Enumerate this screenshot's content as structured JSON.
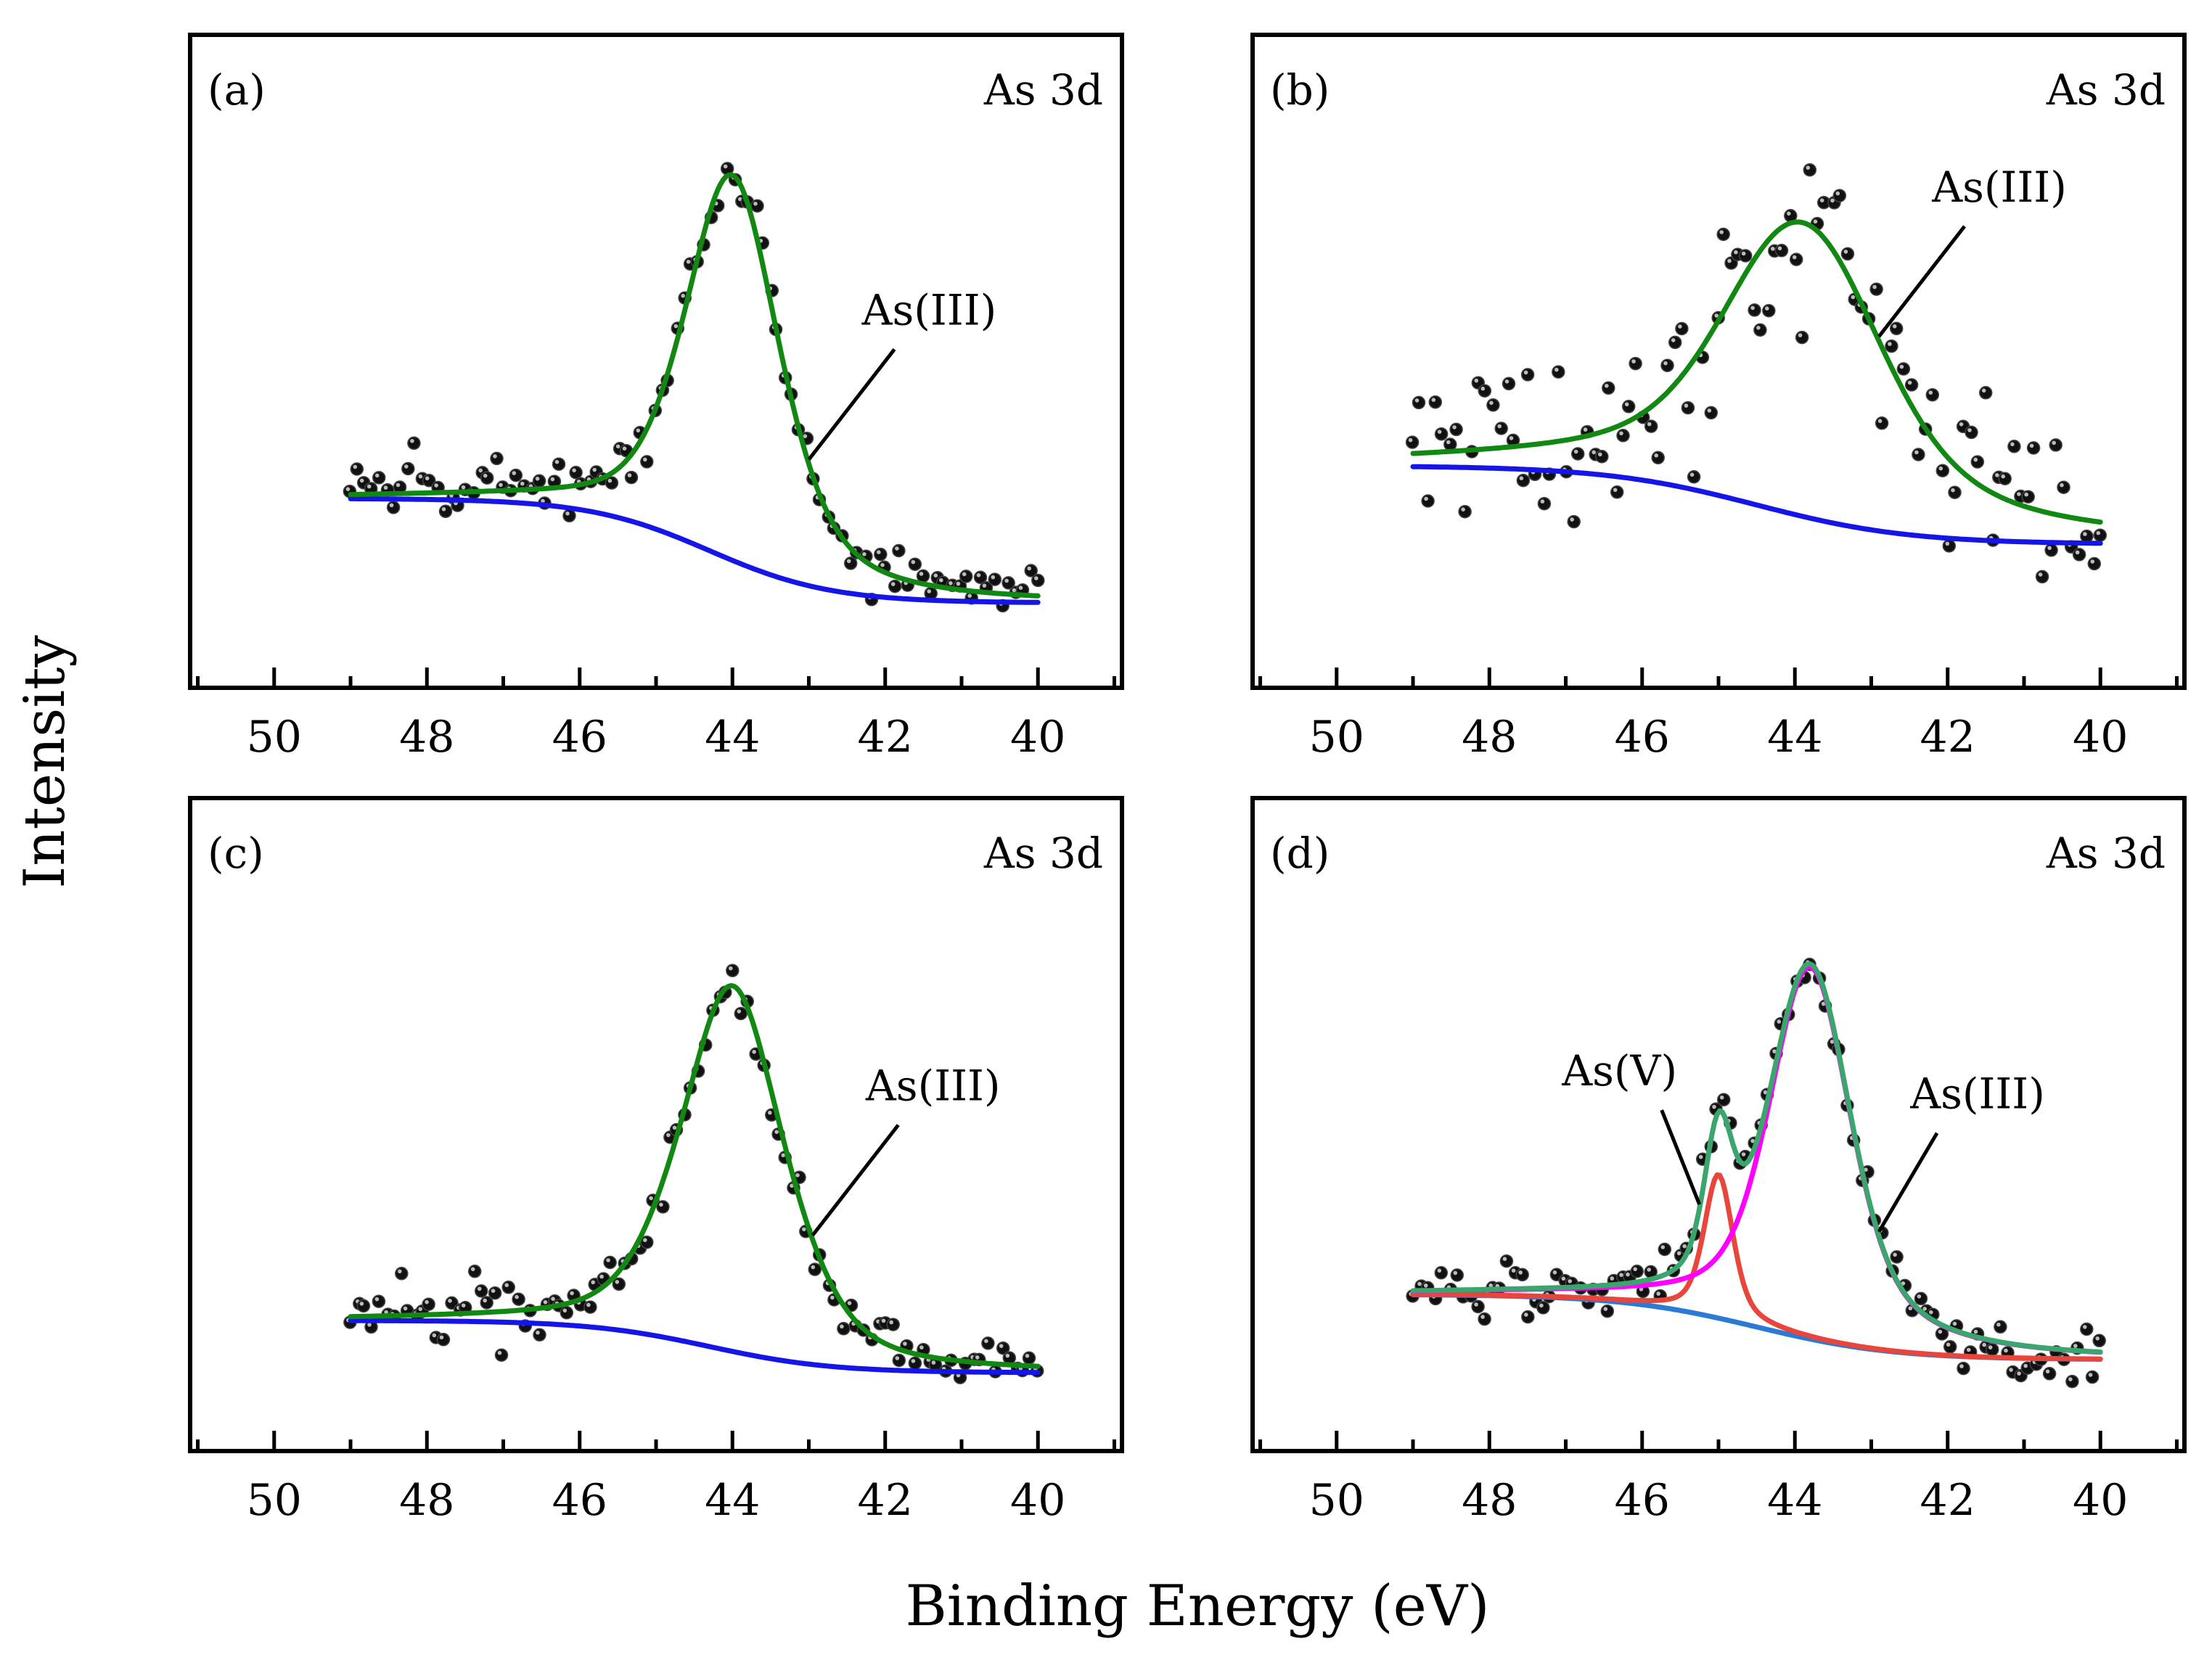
{
  "figure": {
    "xlabel": "Binding Energy (eV)",
    "ylabel": "Intensity"
  },
  "chart_data": [
    {
      "type": "scatter",
      "panel": "(a)",
      "title": "As 3d",
      "xlabel": "Binding Energy (eV)",
      "ylabel": "Intensity",
      "xlim": [
        51.1,
        38.9
      ],
      "ylim": [
        0,
        1
      ],
      "x_reversed": true,
      "xticks": [
        50,
        48,
        46,
        44,
        42,
        40
      ],
      "yticks": [],
      "grid": false,
      "annotations": [
        {
          "text": "As(III)",
          "peak_x": 43.0
        }
      ],
      "data_points": {
        "x_range": [
          49.0,
          40.0
        ],
        "count": 96,
        "peak_center": 44.0,
        "peak_height": 0.86,
        "noise": 0.025
      },
      "series": [
        {
          "name": "Fit",
          "role": "envelope",
          "color": "#118811",
          "components": [
            {
              "center": 44.0,
              "amplitude": 0.59,
              "sigma": 0.62,
              "gamma": 0.75
            }
          ],
          "background": {
            "high": 0.29,
            "low": 0.13,
            "center": 44.3,
            "width": 0.8
          }
        },
        {
          "name": "Background",
          "role": "background",
          "color": "#1515e8",
          "high": 0.29,
          "low": 0.13,
          "center": 44.3,
          "width": 0.8
        }
      ]
    },
    {
      "type": "scatter",
      "panel": "(b)",
      "title": "As 3d",
      "xlabel": "Binding Energy (eV)",
      "ylabel": "Intensity",
      "xlim": [
        51.1,
        38.9
      ],
      "ylim": [
        0,
        1
      ],
      "x_reversed": true,
      "xticks": [
        50,
        48,
        46,
        44,
        42,
        40
      ],
      "yticks": [],
      "grid": false,
      "annotations": [
        {
          "text": "As(III)",
          "peak_x": 42.9
        }
      ],
      "data_points": {
        "x_range": [
          49.0,
          40.0
        ],
        "count": 96,
        "peak_center": 43.9,
        "peak_height": 0.81,
        "noise": 0.065
      },
      "series": [
        {
          "name": "Fit",
          "role": "envelope",
          "color": "#118811",
          "components": [
            {
              "center": 43.9,
              "amplitude": 0.45,
              "sigma": 0.95,
              "gamma": 1.6
            }
          ],
          "background": {
            "high": 0.34,
            "low": 0.22,
            "center": 44.5,
            "width": 1.0
          }
        },
        {
          "name": "Background",
          "role": "background",
          "color": "#1515e8",
          "high": 0.34,
          "low": 0.22,
          "center": 44.5,
          "width": 1.0
        }
      ]
    },
    {
      "type": "scatter",
      "panel": "(c)",
      "title": "As 3d",
      "xlabel": "Binding Energy (eV)",
      "ylabel": "Intensity",
      "xlim": [
        51.1,
        38.9
      ],
      "ylim": [
        0,
        1
      ],
      "x_reversed": true,
      "xticks": [
        50,
        48,
        46,
        44,
        42,
        40
      ],
      "yticks": [],
      "grid": false,
      "annotations": [
        {
          "text": "As(III)",
          "peak_x": 42.95
        }
      ],
      "data_points": {
        "x_range": [
          49.0,
          40.0
        ],
        "count": 96,
        "peak_center": 44.0,
        "peak_height": 0.8,
        "noise": 0.022
      },
      "series": [
        {
          "name": "Fit",
          "role": "envelope",
          "color": "#118811",
          "components": [
            {
              "center": 44.0,
              "amplitude": 0.56,
              "sigma": 0.72,
              "gamma": 0.75
            }
          ],
          "background": {
            "high": 0.2,
            "low": 0.12,
            "center": 44.3,
            "width": 0.8
          }
        },
        {
          "name": "Background",
          "role": "background",
          "color": "#1515e8",
          "high": 0.2,
          "low": 0.12,
          "center": 44.3,
          "width": 0.8
        }
      ]
    },
    {
      "type": "scatter",
      "panel": "(d)",
      "title": "As 3d",
      "xlabel": "Binding Energy (eV)",
      "ylabel": "Intensity",
      "xlim": [
        51.1,
        38.9
      ],
      "ylim": [
        0,
        1
      ],
      "x_reversed": true,
      "xticks": [
        50,
        48,
        46,
        44,
        42,
        40
      ],
      "yticks": [],
      "grid": false,
      "annotations": [
        {
          "text": "As(V)",
          "peak_x": 45.25
        },
        {
          "text": "As(III)",
          "peak_x": 42.9
        }
      ],
      "data_points": {
        "x_range": [
          49.0,
          40.0
        ],
        "count": 96,
        "peak_center": 43.8,
        "peak_height": 0.81,
        "noise": 0.022
      },
      "series": [
        {
          "name": "Envelope",
          "role": "envelope",
          "color": "#3aa56c",
          "components": [
            {
              "center": 45.0,
              "amplitude": 0.22,
              "sigma": 0.18,
              "gamma": 0.25
            },
            {
              "center": 43.8,
              "amplitude": 0.57,
              "sigma": 0.5,
              "gamma": 0.75
            }
          ],
          "background": {
            "high": 0.24,
            "low": 0.14,
            "center": 44.5,
            "width": 0.9
          }
        },
        {
          "name": "As(V)",
          "role": "component",
          "color": "#e8453c",
          "center": 45.0,
          "amplitude": 0.22,
          "sigma": 0.18,
          "gamma": 0.25,
          "background": {
            "high": 0.24,
            "low": 0.14,
            "center": 44.5,
            "width": 0.9
          }
        },
        {
          "name": "As(III)",
          "role": "component",
          "color": "#ff00ff",
          "center": 43.8,
          "amplitude": 0.57,
          "sigma": 0.5,
          "gamma": 0.75,
          "background": {
            "high": 0.24,
            "low": 0.14,
            "center": 44.5,
            "width": 0.9
          }
        },
        {
          "name": "Background",
          "role": "background",
          "color": "#2a7ad6",
          "high": 0.24,
          "low": 0.14,
          "center": 44.5,
          "width": 0.9
        }
      ]
    }
  ]
}
